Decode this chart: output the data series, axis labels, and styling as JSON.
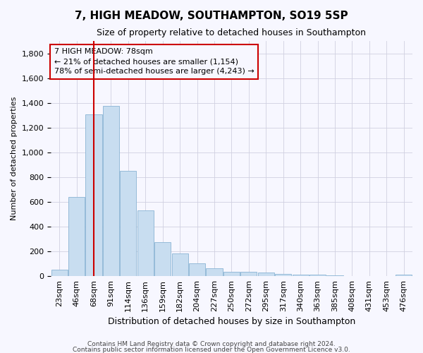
{
  "title": "7, HIGH MEADOW, SOUTHAMPTON, SO19 5SP",
  "subtitle": "Size of property relative to detached houses in Southampton",
  "xlabel": "Distribution of detached houses by size in Southampton",
  "ylabel": "Number of detached properties",
  "bar_color": "#c8ddf0",
  "bar_edgecolor": "#8ab4d4",
  "grid_color": "#d0d0e0",
  "background_color": "#f7f7ff",
  "annotation_box_color": "#cc0000",
  "annotation_line1": "7 HIGH MEADOW: 78sqm",
  "annotation_line2": "← 21% of detached houses are smaller (1,154)",
  "annotation_line3": "78% of semi-detached houses are larger (4,243) →",
  "marker_bin_index": 2,
  "categories": [
    "23sqm",
    "46sqm",
    "68sqm",
    "91sqm",
    "114sqm",
    "136sqm",
    "159sqm",
    "182sqm",
    "204sqm",
    "227sqm",
    "250sqm",
    "272sqm",
    "295sqm",
    "317sqm",
    "340sqm",
    "363sqm",
    "385sqm",
    "408sqm",
    "431sqm",
    "453sqm",
    "476sqm"
  ],
  "values": [
    50,
    640,
    1310,
    1375,
    850,
    530,
    275,
    185,
    105,
    65,
    38,
    38,
    30,
    18,
    12,
    10,
    5,
    3,
    2,
    2,
    15
  ],
  "ylim": [
    0,
    1900
  ],
  "yticks": [
    0,
    200,
    400,
    600,
    800,
    1000,
    1200,
    1400,
    1600,
    1800
  ],
  "footer1": "Contains HM Land Registry data © Crown copyright and database right 2024.",
  "footer2": "Contains public sector information licensed under the Open Government Licence v3.0.",
  "title_fontsize": 11,
  "subtitle_fontsize": 9,
  "xlabel_fontsize": 9,
  "ylabel_fontsize": 8,
  "tick_fontsize": 8,
  "annotation_fontsize": 8,
  "footer_fontsize": 6.5
}
